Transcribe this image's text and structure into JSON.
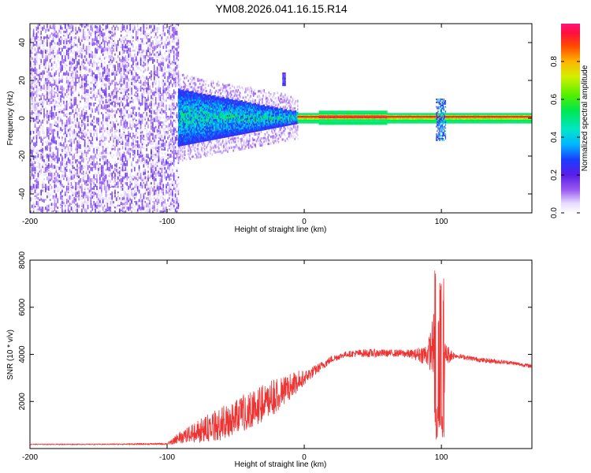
{
  "title": "YM08.2026.041.16.15.R14",
  "chart_data": [
    {
      "type": "heatmap",
      "xlabel": "Height of straight line (km)",
      "ylabel": "Frequency (Hz)",
      "xlim": [
        -200,
        166
      ],
      "ylim": [
        -50,
        50
      ],
      "xticks": [
        -200,
        -100,
        0,
        100
      ],
      "yticks": [
        -40,
        -20,
        0,
        20,
        40
      ],
      "colorbar": {
        "label": "Normalized spectral amplitude",
        "range": [
          0,
          1
        ],
        "ticks": [
          "0.0",
          "0.2",
          "0.4",
          "0.6",
          "0.8"
        ]
      },
      "regions": [
        {
          "name": "noise",
          "x": [
            -200,
            -92
          ],
          "freq_span": [
            -50,
            50
          ],
          "amplitude": 0.05
        },
        {
          "name": "transition",
          "x": [
            -92,
            -5
          ],
          "freq_half_width_start": 15,
          "freq_half_width_end": 3,
          "amplitude": 0.3
        },
        {
          "name": "carrier",
          "x": [
            -5,
            166
          ],
          "freq": 0.7,
          "amplitude": 0.95
        },
        {
          "name": "spike",
          "x": [
            96,
            103
          ],
          "freq_span": [
            -12,
            10
          ],
          "amplitude": 0.5
        },
        {
          "name": "spike-small",
          "x": [
            -16,
            -14
          ],
          "freq_span": [
            17,
            24
          ],
          "amplitude": 0.2
        }
      ]
    },
    {
      "type": "line",
      "xlabel": "Height of straight line (km)",
      "ylabel": "SNR (10 * v/v)",
      "xlim": [
        -200,
        166
      ],
      "ylim": [
        0,
        8000
      ],
      "xticks": [
        -200,
        -100,
        0,
        100
      ],
      "yticks": [
        2000,
        4000,
        6000,
        8000
      ],
      "color": "#ee3333",
      "series": [
        {
          "name": "SNR",
          "x": [
            -200,
            -150,
            -100,
            -90,
            -80,
            -70,
            -60,
            -50,
            -40,
            -30,
            -20,
            -10,
            0,
            10,
            20,
            30,
            40,
            50,
            60,
            70,
            80,
            90,
            95,
            98,
            100,
            103,
            110,
            120,
            130,
            140,
            150,
            160,
            166
          ],
          "values": [
            180,
            180,
            200,
            450,
            650,
            800,
            1000,
            1300,
            1600,
            1900,
            2200,
            2600,
            3000,
            3400,
            3800,
            4000,
            4050,
            4050,
            4050,
            4050,
            4000,
            4000,
            4500,
            6000,
            2000,
            4000,
            3950,
            3850,
            3750,
            3700,
            3650,
            3550,
            3500
          ],
          "noise_amplitude": [
            20,
            20,
            40,
            250,
            400,
            550,
            650,
            700,
            750,
            750,
            650,
            500,
            300,
            200,
            150,
            120,
            150,
            180,
            150,
            150,
            200,
            500,
            1500,
            3000,
            3000,
            500,
            100,
            100,
            100,
            100,
            80,
            80,
            80
          ]
        }
      ]
    }
  ]
}
